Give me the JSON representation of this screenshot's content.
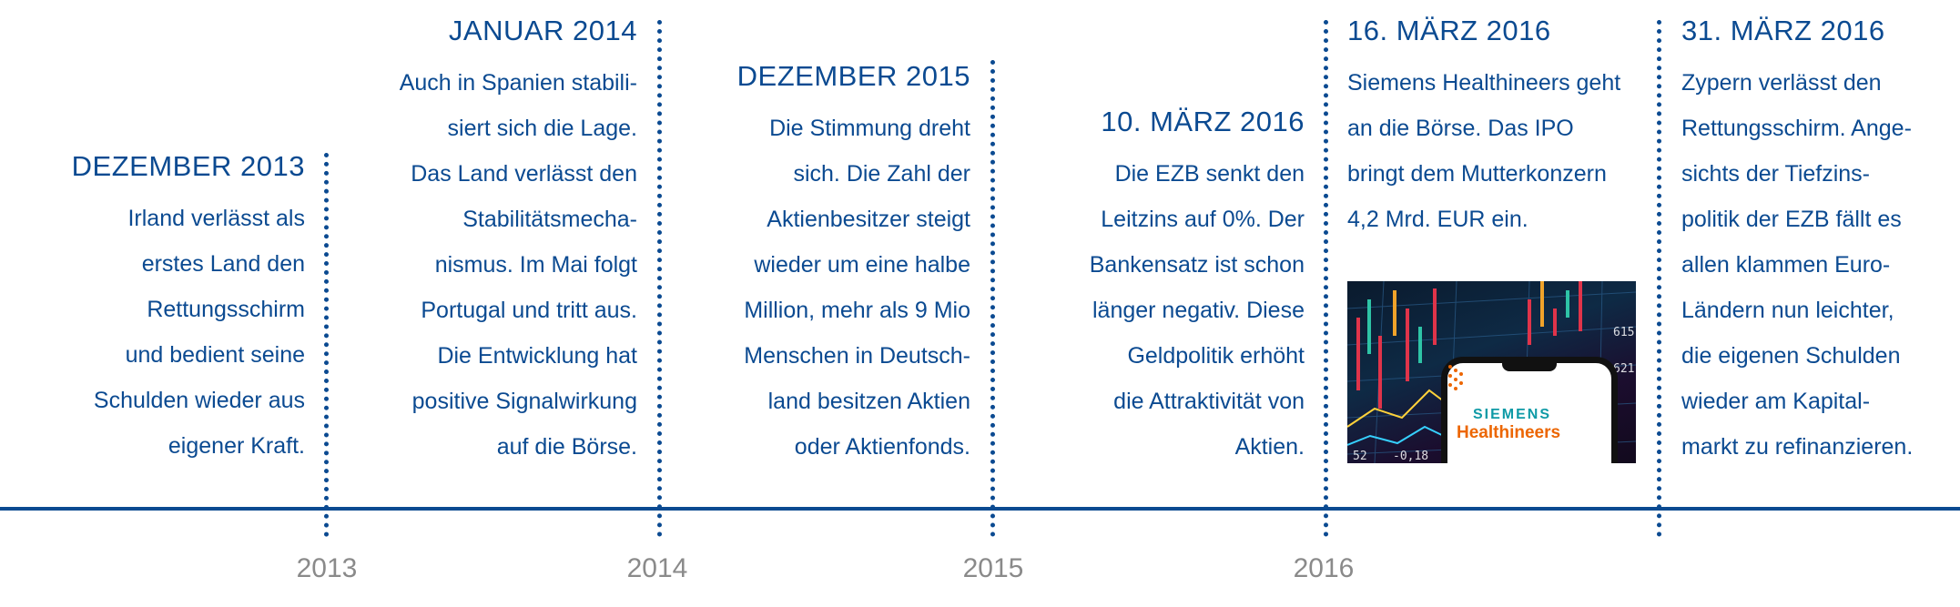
{
  "timeline": {
    "events": [
      {
        "date": "DEZEMBER 2013",
        "lines": [
          "Irland verlässt als",
          "erstes Land den",
          "Rettungsschirm",
          "und bedient seine",
          "Schulden wieder aus",
          "eigener Kraft."
        ]
      },
      {
        "date": "JANUAR 2014",
        "lines": [
          "Auch in Spanien stabili-",
          "siert sich die Lage.",
          "Das Land verlässt den",
          "Stabilitätsmecha-",
          "nismus. Im Mai folgt",
          "Portugal und tritt aus.",
          "Die Entwicklung hat",
          "positive Signalwirkung",
          "auf die Börse."
        ]
      },
      {
        "date": "DEZEMBER 2015",
        "lines": [
          "Die Stimmung dreht",
          "sich. Die Zahl der",
          "Aktienbesitzer steigt",
          "wieder um eine halbe",
          "Million, mehr als 9 Mio",
          "Menschen in Deutsch-",
          "land besitzen Aktien",
          "oder Aktienfonds."
        ]
      },
      {
        "date": "10. MÄRZ 2016",
        "lines": [
          "Die EZB senkt den",
          "Leitzins auf 0%. Der",
          "Bankensatz ist schon",
          "länger negativ. Diese",
          "Geldpolitik erhöht",
          "die Attraktivität von",
          "Aktien."
        ]
      },
      {
        "date": "16. MÄRZ 2016",
        "lines": [
          "Siemens Healthineers geht",
          "an die Börse. Das IPO",
          "bringt dem Mutterkonzern",
          "4,2 Mrd. EUR ein."
        ]
      },
      {
        "date": "31. MÄRZ 2016",
        "lines": [
          "Zypern verlässt den",
          "Rettungsschirm. Ange-",
          "sichts der Tiefzins-",
          "politik der EZB fällt es",
          "allen klammen Euro-",
          "Ländern nun leichter,",
          "die eigenen Schulden",
          "wieder am Kapital-",
          "markt zu refinanzieren."
        ]
      }
    ],
    "years": [
      "2013",
      "2014",
      "2015",
      "2016"
    ]
  },
  "image": {
    "logo_top": "SIEMENS",
    "logo_bottom": "Healthineers",
    "ticker_values": [
      "615",
      "621",
      "52",
      "-0,18"
    ]
  },
  "colors": {
    "accent": "#0b4a91",
    "year_gray": "#8a8a8a",
    "logo_teal": "#0f9aa6",
    "logo_orange": "#ec6602"
  }
}
